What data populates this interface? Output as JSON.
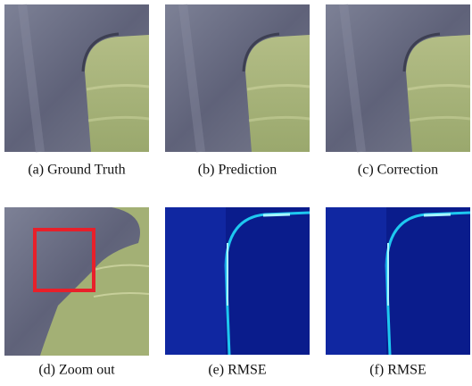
{
  "panels": [
    {
      "caption": "(a) Ground Truth"
    },
    {
      "caption": "(b) Prediction"
    },
    {
      "caption": "(c) Correction"
    },
    {
      "caption": "(d) Zoom out"
    },
    {
      "caption": "(e) RMSE"
    },
    {
      "caption": "(f) RMSE"
    }
  ]
}
